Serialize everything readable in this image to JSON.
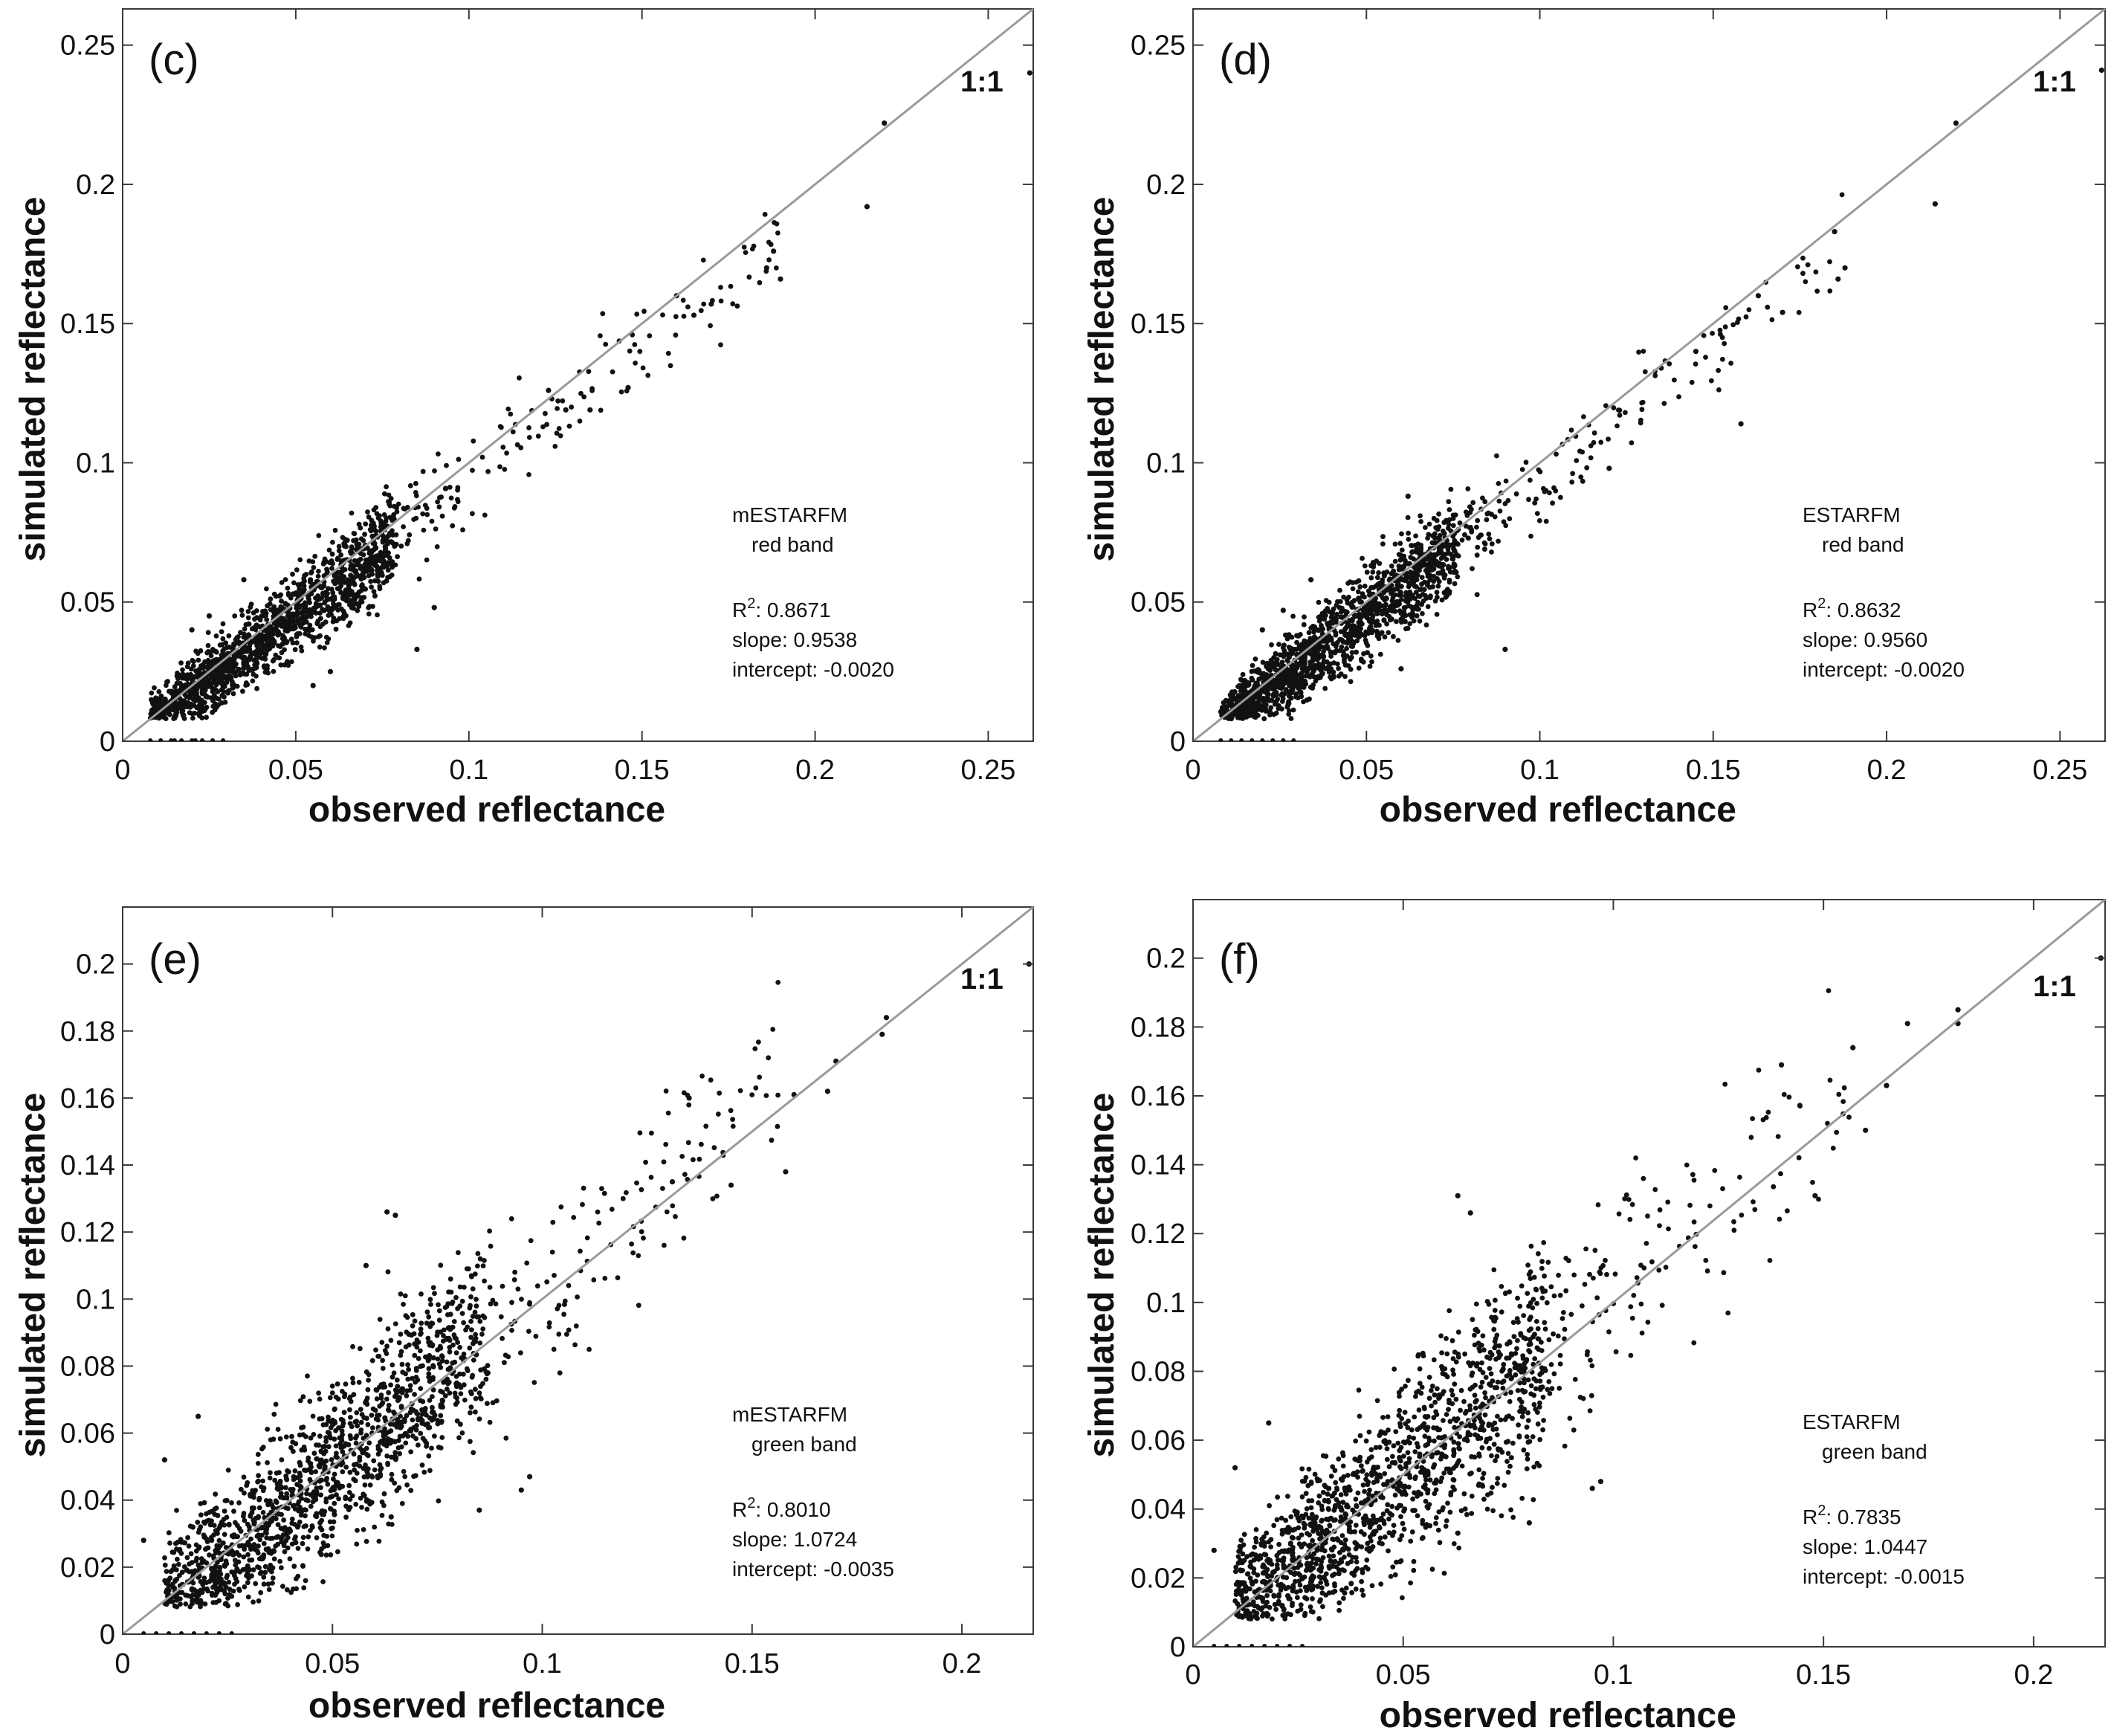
{
  "chart_data": [
    {
      "type": "scatter",
      "panel_label": "(c)",
      "xlabel": "observed reflectance",
      "ylabel": "simulated reflectance",
      "xlim": [
        0,
        0.263
      ],
      "ylim": [
        0,
        0.263
      ],
      "xticks": [
        0,
        0.05,
        0.1,
        0.15,
        0.2,
        0.25
      ],
      "xtick_labels": [
        "0",
        "0.05",
        "0.1",
        "0.15",
        "0.2",
        "0.25"
      ],
      "yticks": [
        0,
        0.05,
        0.1,
        0.15,
        0.2,
        0.25
      ],
      "ytick_labels": [
        "0",
        "0.05",
        "0.1",
        "0.15",
        "0.2",
        "0.25"
      ],
      "one_to_one_label": "1:1",
      "legend": {
        "model": "mESTARFM",
        "band": "red band"
      },
      "stats": {
        "r2_label": "R",
        "r2_sup": "2",
        "r2_value": ": 0.8671",
        "slope": "slope: 0.9538",
        "intercept": "intercept: -0.0020"
      },
      "series": [
        {
          "name": "pixels",
          "slope": 0.9538,
          "intercept": -0.002,
          "core_x": [
            0.008,
            0.078
          ],
          "spread": 0.0075
        }
      ],
      "points": [
        [
          0.22,
          0.222
        ],
        [
          0.215,
          0.192
        ],
        [
          0.262,
          0.24
        ],
        [
          0.188,
          0.176
        ],
        [
          0.19,
          0.166
        ],
        [
          0.186,
          0.17
        ],
        [
          0.17,
          0.157
        ],
        [
          0.165,
          0.153
        ],
        [
          0.16,
          0.16
        ],
        [
          0.123,
          0.126
        ],
        [
          0.128,
          0.119
        ],
        [
          0.135,
          0.119
        ],
        [
          0.146,
          0.127
        ],
        [
          0.085,
          0.033
        ],
        [
          0.09,
          0.048
        ],
        [
          0.06,
          0.025
        ],
        [
          0.055,
          0.02
        ],
        [
          0.02,
          0.04
        ],
        [
          0.025,
          0.045
        ],
        [
          0.035,
          0.058
        ]
      ],
      "floor_points_x": [
        0.008,
        0.011,
        0.014,
        0.017,
        0.02,
        0.023,
        0.026,
        0.029,
        0.021,
        0.015
      ]
    },
    {
      "type": "scatter",
      "panel_label": "(d)",
      "xlabel": "observed reflectance",
      "ylabel": "simulated reflectance",
      "xlim": [
        0,
        0.263
      ],
      "ylim": [
        0,
        0.263
      ],
      "xticks": [
        0,
        0.05,
        0.1,
        0.15,
        0.2,
        0.25
      ],
      "xtick_labels": [
        "0",
        "0.05",
        "0.1",
        "0.15",
        "0.2",
        "0.25"
      ],
      "yticks": [
        0,
        0.05,
        0.1,
        0.15,
        0.2,
        0.25
      ],
      "ytick_labels": [
        "0",
        "0.05",
        "0.1",
        "0.15",
        "0.2",
        "0.25"
      ],
      "one_to_one_label": "1:1",
      "legend": {
        "model": "ESTARFM",
        "band": "red band"
      },
      "stats": {
        "r2_label": "R",
        "r2_sup": "2",
        "r2_value": ": 0.8632",
        "slope": "slope: 0.9560",
        "intercept": "intercept: -0.0020"
      },
      "series": [
        {
          "name": "pixels",
          "slope": 0.956,
          "intercept": -0.002,
          "core_x": [
            0.008,
            0.076
          ],
          "spread": 0.0078
        }
      ],
      "points": [
        [
          0.22,
          0.222
        ],
        [
          0.214,
          0.193
        ],
        [
          0.262,
          0.241
        ],
        [
          0.188,
          0.17
        ],
        [
          0.186,
          0.166
        ],
        [
          0.185,
          0.183
        ],
        [
          0.158,
          0.114
        ],
        [
          0.17,
          0.154
        ],
        [
          0.163,
          0.16
        ],
        [
          0.145,
          0.14
        ],
        [
          0.135,
          0.134
        ],
        [
          0.12,
          0.098
        ],
        [
          0.062,
          0.088
        ],
        [
          0.09,
          0.033
        ],
        [
          0.06,
          0.026
        ],
        [
          0.02,
          0.04
        ],
        [
          0.026,
          0.047
        ],
        [
          0.034,
          0.058
        ]
      ],
      "floor_points_x": [
        0.008,
        0.011,
        0.014,
        0.017,
        0.02,
        0.023,
        0.026,
        0.029
      ]
    },
    {
      "type": "scatter",
      "panel_label": "(e)",
      "xlabel": "observed reflectance",
      "ylabel": "simulated reflectance",
      "xlim": [
        0,
        0.217
      ],
      "ylim": [
        0,
        0.217
      ],
      "xticks": [
        0,
        0.05,
        0.1,
        0.15,
        0.2
      ],
      "xtick_labels": [
        "0",
        "0.05",
        "0.1",
        "0.15",
        "0.2"
      ],
      "yticks": [
        0,
        0.02,
        0.04,
        0.06,
        0.08,
        0.1,
        0.12,
        0.14,
        0.16,
        0.18,
        0.2
      ],
      "ytick_labels": [
        "0",
        "0.02",
        "0.04",
        "0.06",
        "0.08",
        "0.1",
        "0.12",
        "0.14",
        "0.16",
        "0.18",
        "0.2"
      ],
      "one_to_one_label": "1:1",
      "legend": {
        "model": "mESTARFM",
        "band": "green band"
      },
      "stats": {
        "r2_label": "R",
        "r2_sup": "2",
        "r2_value": ": 0.8010",
        "slope": "slope: 1.0724",
        "intercept": "intercept: -0.0035"
      },
      "series": [
        {
          "name": "pixels",
          "slope": 1.0724,
          "intercept": -0.0035,
          "core_x": [
            0.01,
            0.085
          ],
          "spread": 0.013
        }
      ],
      "points": [
        [
          0.182,
          0.184
        ],
        [
          0.181,
          0.179
        ],
        [
          0.216,
          0.2
        ],
        [
          0.17,
          0.171
        ],
        [
          0.168,
          0.162
        ],
        [
          0.16,
          0.161
        ],
        [
          0.158,
          0.138
        ],
        [
          0.135,
          0.16
        ],
        [
          0.145,
          0.134
        ],
        [
          0.131,
          0.135
        ],
        [
          0.063,
          0.126
        ],
        [
          0.065,
          0.125
        ],
        [
          0.058,
          0.11
        ],
        [
          0.095,
          0.043
        ],
        [
          0.097,
          0.047
        ],
        [
          0.064,
          0.035
        ],
        [
          0.085,
          0.037
        ],
        [
          0.005,
          0.028
        ],
        [
          0.01,
          0.052
        ],
        [
          0.018,
          0.065
        ]
      ],
      "floor_points_x": [
        0.005,
        0.008,
        0.011,
        0.014,
        0.017,
        0.02,
        0.023,
        0.026
      ]
    },
    {
      "type": "scatter",
      "panel_label": "(f)",
      "xlabel": "observed reflectance",
      "ylabel": "simulated reflectance",
      "xlim": [
        0,
        0.217
      ],
      "ylim": [
        0,
        0.217
      ],
      "xticks": [
        0,
        0.05,
        0.1,
        0.15,
        0.2
      ],
      "xtick_labels": [
        "0",
        "0.05",
        "0.1",
        "0.15",
        "0.2"
      ],
      "yticks": [
        0,
        0.02,
        0.04,
        0.06,
        0.08,
        0.1,
        0.12,
        0.14,
        0.16,
        0.18,
        0.2
      ],
      "ytick_labels": [
        "0",
        "0.02",
        "0.04",
        "0.06",
        "0.08",
        "0.1",
        "0.12",
        "0.14",
        "0.16",
        "0.18",
        "0.2"
      ],
      "one_to_one_label": "1:1",
      "legend": {
        "model": "ESTARFM",
        "band": "green band"
      },
      "stats": {
        "r2_label": "R",
        "r2_sup": "2",
        "r2_value": ": 0.7835",
        "slope": "slope: 1.0447",
        "intercept": "intercept: -0.0015"
      },
      "series": [
        {
          "name": "pixels",
          "slope": 1.0447,
          "intercept": -0.0015,
          "core_x": [
            0.01,
            0.083
          ],
          "spread": 0.014
        }
      ],
      "points": [
        [
          0.182,
          0.185
        ],
        [
          0.182,
          0.181
        ],
        [
          0.216,
          0.2
        ],
        [
          0.17,
          0.181
        ],
        [
          0.16,
          0.15
        ],
        [
          0.165,
          0.163
        ],
        [
          0.14,
          0.169
        ],
        [
          0.148,
          0.131
        ],
        [
          0.157,
          0.174
        ],
        [
          0.063,
          0.131
        ],
        [
          0.066,
          0.126
        ],
        [
          0.095,
          0.046
        ],
        [
          0.097,
          0.048
        ],
        [
          0.08,
          0.036
        ],
        [
          0.063,
          0.033
        ],
        [
          0.005,
          0.028
        ],
        [
          0.01,
          0.052
        ],
        [
          0.018,
          0.065
        ]
      ],
      "floor_points_x": [
        0.005,
        0.008,
        0.011,
        0.014,
        0.017,
        0.02,
        0.023,
        0.026
      ]
    }
  ]
}
